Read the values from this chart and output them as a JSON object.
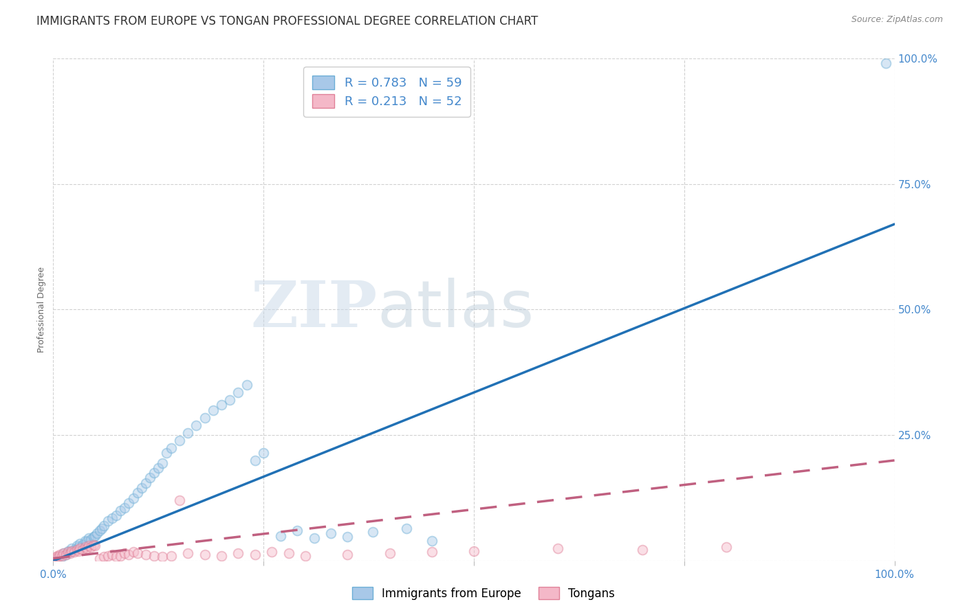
{
  "title": "IMMIGRANTS FROM EUROPE VS TONGAN PROFESSIONAL DEGREE CORRELATION CHART",
  "source": "Source: ZipAtlas.com",
  "ylabel_label": "Professional Degree",
  "xlim": [
    0,
    1
  ],
  "ylim": [
    0,
    1
  ],
  "legend_entries": [
    {
      "label": "Immigrants from Europe",
      "R": 0.783,
      "N": 59,
      "color": "#a8c8e8"
    },
    {
      "label": "Tongans",
      "R": 0.213,
      "N": 52,
      "color": "#f4b8c8"
    }
  ],
  "blue_scatter_x": [
    0.005,
    0.008,
    0.01,
    0.012,
    0.015,
    0.018,
    0.02,
    0.022,
    0.025,
    0.028,
    0.03,
    0.032,
    0.035,
    0.038,
    0.04,
    0.042,
    0.045,
    0.048,
    0.05,
    0.052,
    0.055,
    0.058,
    0.06,
    0.065,
    0.07,
    0.075,
    0.08,
    0.085,
    0.09,
    0.095,
    0.1,
    0.105,
    0.11,
    0.115,
    0.12,
    0.125,
    0.13,
    0.135,
    0.14,
    0.15,
    0.16,
    0.17,
    0.18,
    0.19,
    0.2,
    0.21,
    0.22,
    0.23,
    0.24,
    0.25,
    0.27,
    0.29,
    0.31,
    0.33,
    0.35,
    0.38,
    0.42,
    0.45,
    0.99
  ],
  "blue_scatter_y": [
    0.005,
    0.01,
    0.008,
    0.015,
    0.012,
    0.02,
    0.018,
    0.025,
    0.022,
    0.03,
    0.028,
    0.035,
    0.032,
    0.04,
    0.038,
    0.045,
    0.042,
    0.048,
    0.05,
    0.055,
    0.06,
    0.065,
    0.07,
    0.08,
    0.085,
    0.09,
    0.1,
    0.105,
    0.115,
    0.125,
    0.135,
    0.145,
    0.155,
    0.165,
    0.175,
    0.185,
    0.195,
    0.215,
    0.225,
    0.24,
    0.255,
    0.27,
    0.285,
    0.3,
    0.31,
    0.32,
    0.335,
    0.35,
    0.2,
    0.215,
    0.05,
    0.06,
    0.045,
    0.055,
    0.048,
    0.058,
    0.065,
    0.04,
    0.99
  ],
  "pink_scatter_x": [
    0.002,
    0.004,
    0.005,
    0.006,
    0.008,
    0.01,
    0.012,
    0.015,
    0.018,
    0.02,
    0.022,
    0.025,
    0.028,
    0.03,
    0.032,
    0.035,
    0.038,
    0.04,
    0.042,
    0.045,
    0.048,
    0.05,
    0.055,
    0.06,
    0.065,
    0.07,
    0.075,
    0.08,
    0.085,
    0.09,
    0.095,
    0.1,
    0.11,
    0.12,
    0.13,
    0.14,
    0.15,
    0.16,
    0.18,
    0.2,
    0.22,
    0.24,
    0.26,
    0.28,
    0.3,
    0.35,
    0.4,
    0.45,
    0.5,
    0.6,
    0.7,
    0.8
  ],
  "pink_scatter_y": [
    0.005,
    0.008,
    0.01,
    0.008,
    0.012,
    0.01,
    0.015,
    0.012,
    0.018,
    0.015,
    0.02,
    0.018,
    0.022,
    0.02,
    0.025,
    0.022,
    0.028,
    0.025,
    0.03,
    0.028,
    0.032,
    0.03,
    0.005,
    0.008,
    0.01,
    0.012,
    0.008,
    0.01,
    0.015,
    0.012,
    0.018,
    0.015,
    0.012,
    0.01,
    0.008,
    0.01,
    0.12,
    0.015,
    0.012,
    0.01,
    0.015,
    0.012,
    0.018,
    0.015,
    0.01,
    0.012,
    0.015,
    0.018,
    0.02,
    0.025,
    0.022,
    0.028
  ],
  "blue_line_x": [
    0.0,
    1.0
  ],
  "blue_line_y": [
    0.0,
    0.67
  ],
  "pink_line_x": [
    0.0,
    1.0
  ],
  "pink_line_y": [
    0.005,
    0.2
  ],
  "watermark_zip": "ZIP",
  "watermark_atlas": "atlas",
  "background_color": "#ffffff",
  "blue_color": "#a8c8e8",
  "blue_edge_color": "#6baed6",
  "pink_color": "#f4b8c8",
  "pink_edge_color": "#e08098",
  "blue_line_color": "#2171b5",
  "pink_line_color": "#c06080",
  "grid_color": "#cccccc",
  "tick_label_color": "#4488cc",
  "title_color": "#333333",
  "source_color": "#888888",
  "title_fontsize": 12,
  "source_fontsize": 9,
  "axis_label_fontsize": 9,
  "tick_fontsize": 11,
  "scatter_size": 100,
  "scatter_alpha": 0.45,
  "line_width": 2.5
}
